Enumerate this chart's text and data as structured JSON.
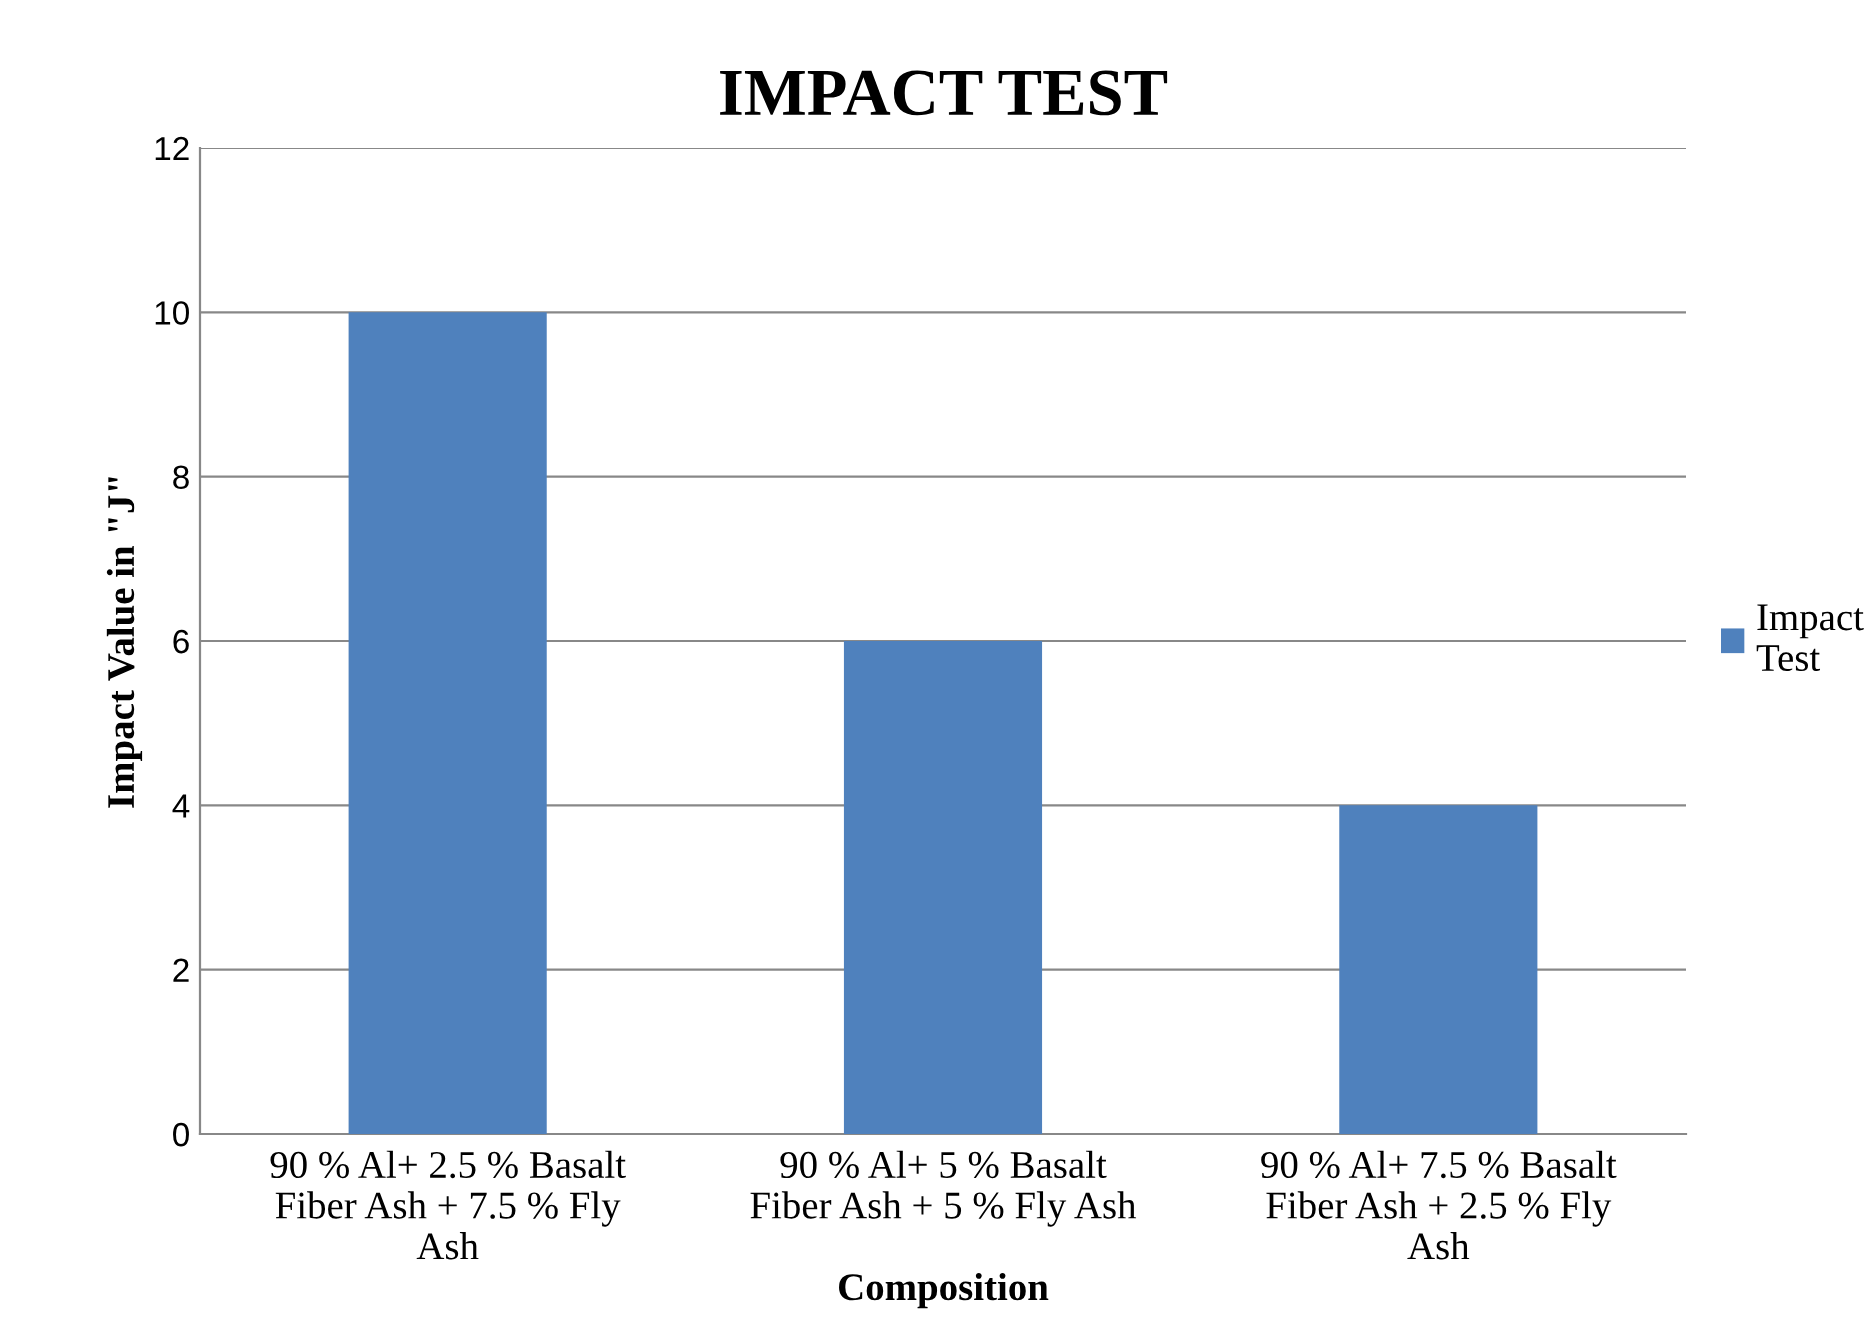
{
  "chart_data": {
    "type": "bar",
    "title": "IMPACT TEST",
    "xlabel": "Composition",
    "ylabel": "Impact Value in \"J\"",
    "categories": [
      "90 % Al+ 2.5 % Basalt Fiber Ash + 7.5 % Fly Ash",
      "90 % Al+ 5 % Basalt Fiber Ash + 5 % Fly Ash",
      "90 % Al+ 7.5 % Basalt Fiber Ash + 2.5 % Fly Ash"
    ],
    "series": [
      {
        "name": "Impact Test",
        "color": "#4f81bd",
        "values": [
          10,
          6,
          4
        ]
      }
    ],
    "ylim": [
      0,
      12
    ],
    "yticks": [
      0,
      2,
      4,
      6,
      8,
      10,
      12
    ],
    "grid": "y",
    "legend": "right"
  }
}
